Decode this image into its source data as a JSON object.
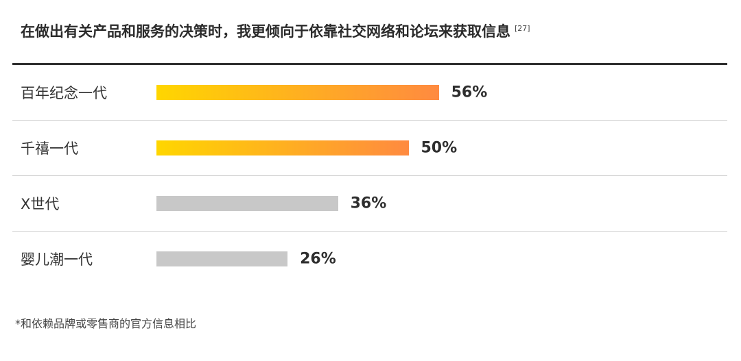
{
  "chart_data": {
    "type": "bar",
    "orientation": "horizontal",
    "title": "在做出有关产品和服务的决策时，我更倾向于依靠社交网络和论坛来获取信息",
    "title_ref": "[27]",
    "categories": [
      "百年纪念一代",
      "千禧一代",
      "X世代",
      "婴儿潮一代"
    ],
    "values": [
      56,
      50,
      36,
      26
    ],
    "value_labels": [
      "56%",
      "50%",
      "36%",
      "26%"
    ],
    "unit": "%",
    "xlim": [
      0,
      100
    ],
    "highlighted": [
      true,
      true,
      false,
      false
    ],
    "colors": {
      "highlight_start": "#ffd600",
      "highlight_end": "#ff8a40",
      "neutral": "#c8c8c8"
    },
    "footnote": "*和依赖品牌或零售商的官方信息相比"
  }
}
